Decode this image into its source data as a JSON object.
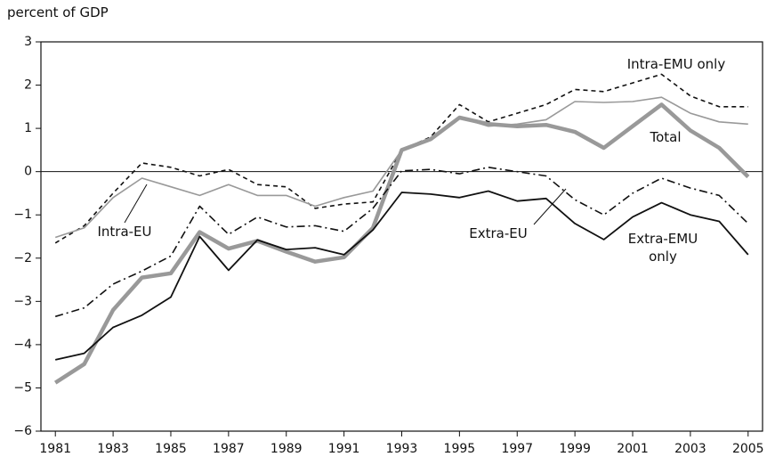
{
  "chart_data": {
    "type": "line",
    "y_label": "percent of GDP",
    "x": [
      1981,
      1982,
      1983,
      1984,
      1985,
      1986,
      1987,
      1988,
      1989,
      1990,
      1991,
      1992,
      1993,
      1994,
      1995,
      1996,
      1997,
      1998,
      1999,
      2000,
      2001,
      2002,
      2003,
      2004,
      2005
    ],
    "xlim": [
      1980.5,
      2005.5
    ],
    "xticks": [
      1981,
      1983,
      1985,
      1987,
      1989,
      1991,
      1993,
      1995,
      1997,
      1999,
      2001,
      2003,
      2005
    ],
    "ylim": [
      -6,
      3
    ],
    "yticks": [
      {
        "value": -6,
        "label": "−6"
      },
      {
        "value": -5,
        "label": "−5"
      },
      {
        "value": -4,
        "label": "−4"
      },
      {
        "value": -3,
        "label": "−3"
      },
      {
        "value": -2,
        "label": "−2"
      },
      {
        "value": -1,
        "label": "−1"
      },
      0,
      1,
      2,
      3
    ],
    "zero_line": true,
    "series": [
      {
        "name": "Intra-EMU only",
        "color": "#111111",
        "style": "dashed",
        "width": 1.6,
        "values": [
          -1.65,
          -1.25,
          -0.5,
          0.2,
          0.1,
          -0.1,
          0.05,
          -0.3,
          -0.35,
          -0.85,
          -0.75,
          -0.7,
          0.5,
          0.8,
          1.55,
          1.15,
          1.35,
          1.55,
          1.9,
          1.85,
          2.05,
          2.25,
          1.75,
          1.5,
          1.5
        ]
      },
      {
        "name": "Intra-EU",
        "color": "#999999",
        "style": "solid",
        "width": 1.6,
        "values": [
          -1.52,
          -1.3,
          -0.6,
          -0.15,
          -0.35,
          -0.55,
          -0.3,
          -0.55,
          -0.55,
          -0.8,
          -0.6,
          -0.45,
          0.5,
          0.75,
          1.25,
          1.05,
          1.1,
          1.2,
          1.62,
          1.6,
          1.62,
          1.72,
          1.35,
          1.15,
          1.1
        ]
      },
      {
        "name": "Total",
        "color": "#999999",
        "style": "solid",
        "width": 4.5,
        "values": [
          -4.88,
          -4.45,
          -3.2,
          -2.45,
          -2.35,
          -1.4,
          -1.78,
          -1.6,
          -1.85,
          -2.08,
          -1.98,
          -1.3,
          0.5,
          0.75,
          1.25,
          1.1,
          1.05,
          1.08,
          0.92,
          0.55,
          1.05,
          1.55,
          0.95,
          0.55,
          -0.12
        ]
      },
      {
        "name": "Extra-EU",
        "color": "#111111",
        "style": "dashdot",
        "width": 1.6,
        "values": [
          -3.35,
          -3.15,
          -2.6,
          -2.3,
          -1.95,
          -0.8,
          -1.45,
          -1.05,
          -1.28,
          -1.25,
          -1.38,
          -0.85,
          0.02,
          0.05,
          -0.05,
          0.1,
          0,
          -0.1,
          -0.65,
          -1.0,
          -0.5,
          -0.15,
          -0.38,
          -0.55,
          -1.2
        ]
      },
      {
        "name": "Extra-EMU only",
        "color": "#111111",
        "style": "solid",
        "width": 1.8,
        "values": [
          -4.35,
          -4.2,
          -3.6,
          -3.32,
          -2.9,
          -1.5,
          -2.28,
          -1.58,
          -1.8,
          -1.76,
          -1.92,
          -1.35,
          -0.48,
          -0.52,
          -0.6,
          -0.45,
          -0.68,
          -0.62,
          -1.2,
          -1.57,
          -1.05,
          -0.72,
          -1.0,
          -1.15,
          -1.92
        ]
      }
    ]
  }
}
